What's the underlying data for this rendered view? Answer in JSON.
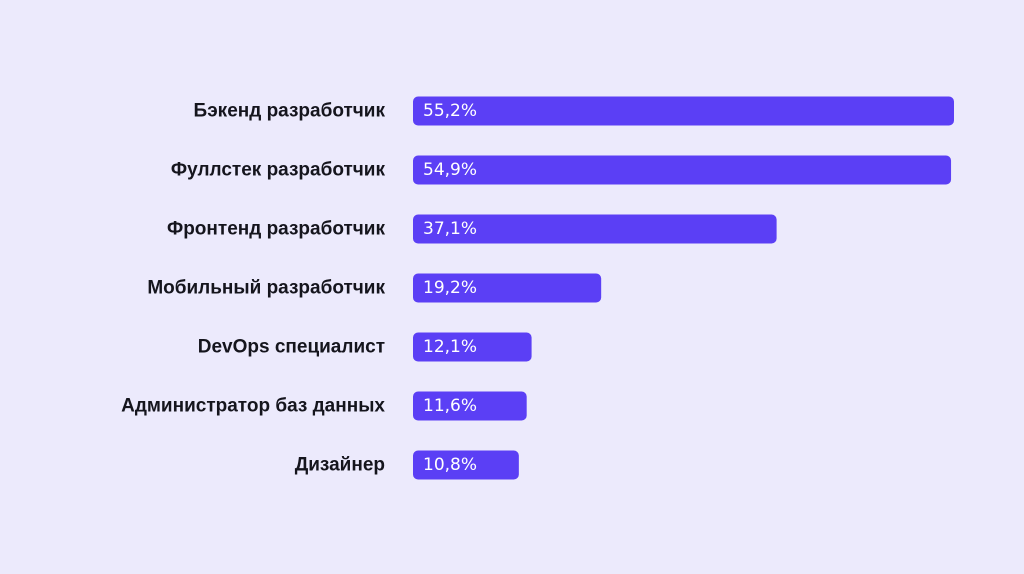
{
  "colors": {
    "background": "#eceafc",
    "bar": "#5b3ff5",
    "label_text": "#15151d",
    "value_text": "#ffffff"
  },
  "chart_data": {
    "type": "bar",
    "orientation": "horizontal",
    "title": "",
    "xlabel": "",
    "ylabel": "",
    "xlim": [
      0,
      55.2
    ],
    "grid": false,
    "legend": "none",
    "categories": [
      "Бэкенд разработчик",
      "Фуллстек разработчик",
      "Фронтенд разработчик",
      "Мобильный разработчик",
      "DevOps специалист",
      "Администратор баз данных",
      "Дизайнер"
    ],
    "values": [
      55.2,
      54.9,
      37.1,
      19.2,
      12.1,
      11.6,
      10.8
    ],
    "value_labels": [
      "55,2%",
      "54,9%",
      "37,1%",
      "19,2%",
      "12,1%",
      "11,6%",
      "10,8%"
    ]
  }
}
